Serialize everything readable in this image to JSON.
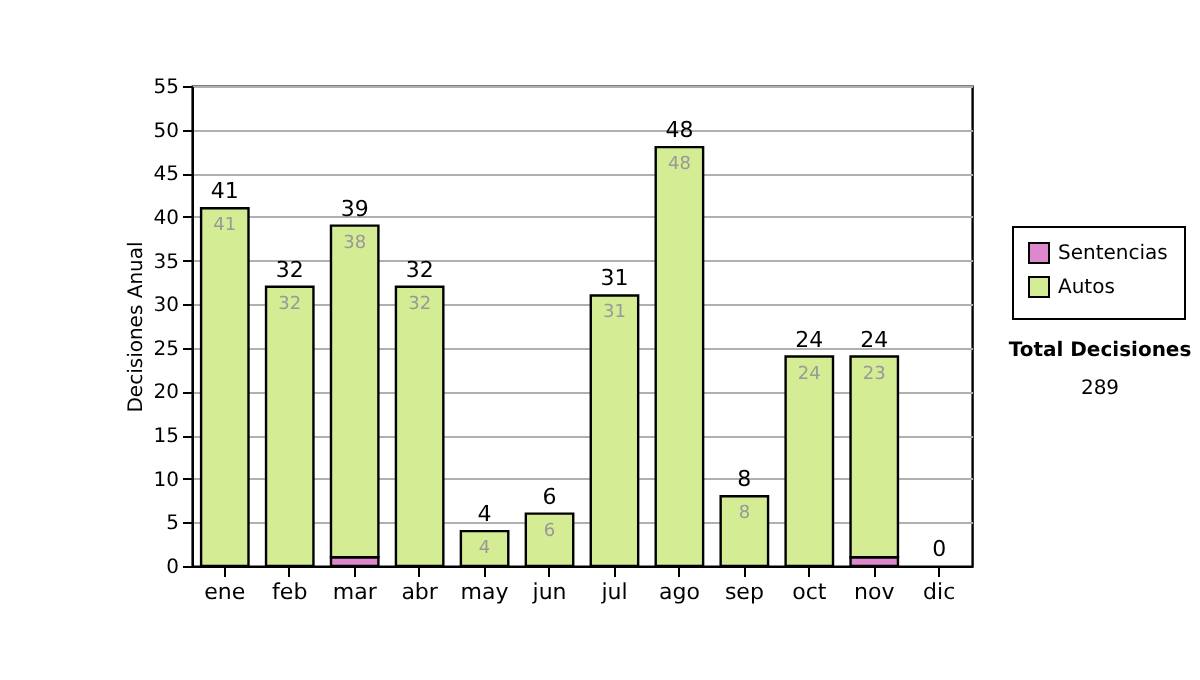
{
  "chart_data": {
    "type": "bar",
    "stacked": true,
    "ylabel": "Decisiones Anual",
    "categories": [
      "ene",
      "feb",
      "mar",
      "abr",
      "may",
      "jun",
      "jul",
      "ago",
      "sep",
      "oct",
      "nov",
      "dic"
    ],
    "series": [
      {
        "name": "Sentencias",
        "color": "#dd88cc",
        "values": [
          0,
          0,
          1,
          0,
          0,
          0,
          0,
          0,
          0,
          0,
          1,
          0
        ]
      },
      {
        "name": "Autos",
        "color": "#d4ec94",
        "values": [
          41,
          32,
          38,
          32,
          4,
          6,
          31,
          48,
          8,
          24,
          23,
          0
        ],
        "value_labels": [
          "41",
          "32",
          "38",
          "32",
          "4",
          "6",
          "31",
          "48",
          "8",
          "24",
          "23",
          null
        ]
      }
    ],
    "totals": [
      "41",
      "32",
      "39",
      "32",
      "4",
      "6",
      "31",
      "48",
      "8",
      "24",
      "24",
      "0"
    ],
    "ylim": [
      0,
      55
    ],
    "yticks": [
      0,
      5,
      10,
      15,
      20,
      25,
      30,
      35,
      40,
      45,
      50,
      55
    ],
    "grid": "y",
    "legend": "right",
    "annotations": [
      "Total Decisiones",
      "289"
    ]
  }
}
